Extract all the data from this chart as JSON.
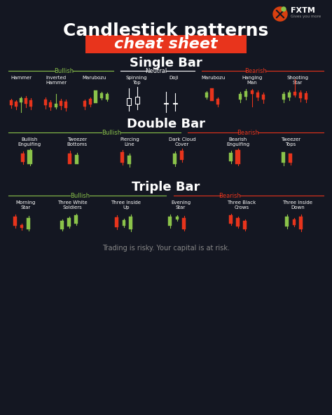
{
  "bg_color": "#141722",
  "title1": "Candlestick patterns",
  "title2": "cheat sheet",
  "title2_bg": "#e8341c",
  "white": "#ffffff",
  "green": "#8bc34a",
  "red": "#e8341c",
  "bullish_color": "#8bc34a",
  "bearish_color": "#e8341c",
  "neutral_color": "#ffffff",
  "footer": "Trading is risky. Your capital is at risk."
}
